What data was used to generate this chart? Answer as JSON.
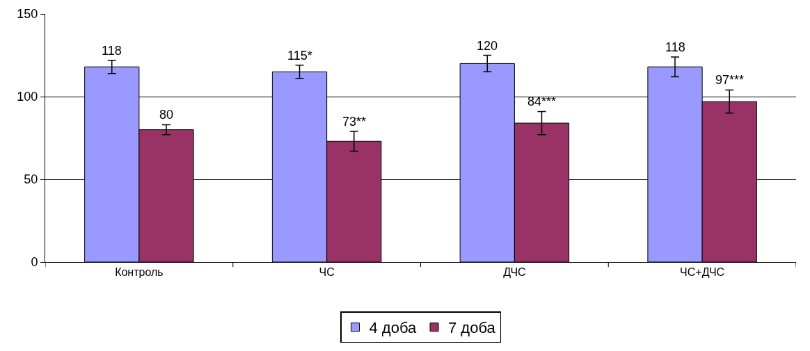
{
  "chart_data": {
    "type": "bar",
    "categories": [
      "Контроль",
      "ЧС",
      "ДЧС",
      "ЧС+ДЧС"
    ],
    "series": [
      {
        "name": "4 доба",
        "color": "#9999ff",
        "values": [
          118,
          115,
          120,
          118
        ],
        "errors": [
          4,
          4,
          5,
          6
        ],
        "value_labels": [
          "118",
          "115*",
          "120",
          "118"
        ]
      },
      {
        "name": "7 доба",
        "color": "#993366",
        "values": [
          80,
          73,
          84,
          97
        ],
        "errors": [
          3,
          6,
          7,
          7
        ],
        "value_labels": [
          "80",
          "73**",
          "84***",
          "97***"
        ]
      }
    ],
    "ylim": [
      0,
      150
    ],
    "yticks": [
      0,
      50,
      100,
      150
    ],
    "grid": "y",
    "legend": "bottom"
  }
}
